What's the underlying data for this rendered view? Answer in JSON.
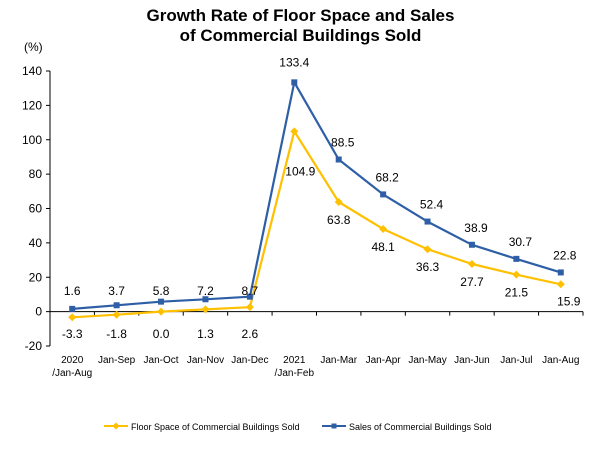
{
  "chart_data": {
    "type": "line",
    "title_line1": "Growth Rate of Floor Space and Sales",
    "title_line2": "of Commercial Buildings Sold",
    "ylabel": "(%)",
    "ylim": [
      -20,
      140
    ],
    "yticks": [
      -20,
      0,
      20,
      40,
      60,
      80,
      100,
      120,
      140
    ],
    "grid": false,
    "legend_position": "bottom",
    "categories": [
      [
        "2020",
        "/Jan-Aug"
      ],
      [
        "Jan-Sep"
      ],
      [
        "Jan-Oct"
      ],
      [
        "Jan-Nov"
      ],
      [
        "Jan-Dec"
      ],
      [
        "2021",
        "/Jan-Feb"
      ],
      [
        "Jan-Mar"
      ],
      [
        "Jan-Apr"
      ],
      [
        "Jan-May"
      ],
      [
        "Jan-Jun"
      ],
      [
        "Jan-Jul"
      ],
      [
        "Jan-Aug"
      ]
    ],
    "series": [
      {
        "name": "Floor Space of Commercial Buildings Sold",
        "color": "#FFC000",
        "marker": "diamond",
        "values": [
          -3.3,
          -1.8,
          0.0,
          1.3,
          2.6,
          104.9,
          63.8,
          48.1,
          36.3,
          27.7,
          21.5,
          15.9
        ],
        "labels": [
          "-3.3",
          "-1.8",
          "0.0",
          "1.3",
          "2.6",
          "104.9",
          "63.8",
          "48.1",
          "36.3",
          "27.7",
          "21.5",
          "15.9"
        ]
      },
      {
        "name": "Sales of Commercial Buildings Sold",
        "color": "#2E5FA6",
        "marker": "square",
        "values": [
          1.6,
          3.7,
          5.8,
          7.2,
          8.7,
          133.4,
          88.5,
          68.2,
          52.4,
          38.9,
          30.7,
          22.8
        ],
        "labels": [
          "1.6",
          "3.7",
          "5.8",
          "7.2",
          "8.7",
          "133.4",
          "88.5",
          "68.2",
          "52.4",
          "38.9",
          "30.7",
          "22.8"
        ]
      }
    ]
  }
}
